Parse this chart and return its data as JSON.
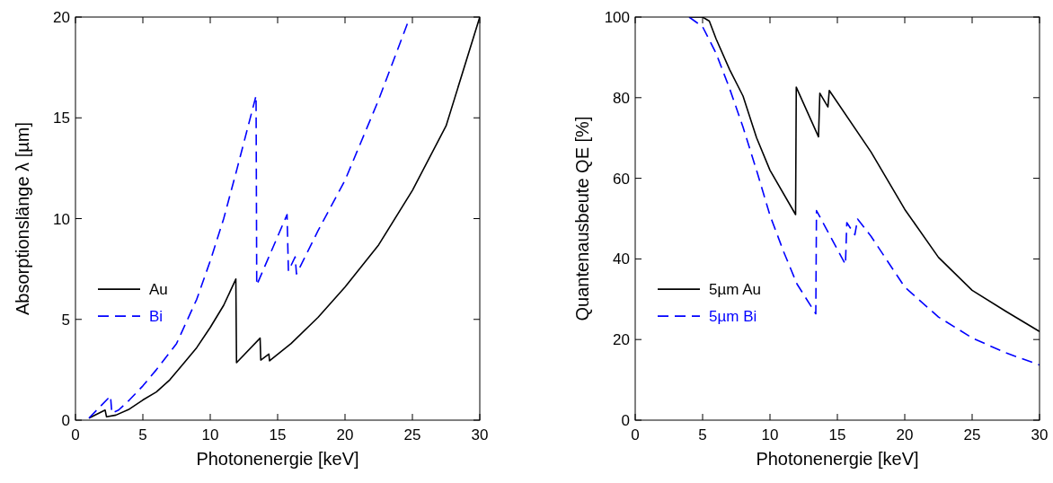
{
  "chart_data": [
    {
      "type": "line",
      "xlabel": "Photonenergie [keV]",
      "ylabel": "Absorptionslänge λ [µm]",
      "xlim": [
        0,
        30
      ],
      "ylim": [
        0,
        20
      ],
      "xticks": [
        0,
        5,
        10,
        15,
        20,
        25,
        30
      ],
      "yticks": [
        0,
        5,
        10,
        15,
        20
      ],
      "legend": "left",
      "grid": false,
      "series": [
        {
          "name": "Au",
          "color": "#000000",
          "line_style": "solid",
          "x": [
            1,
            2.2,
            2.3,
            3,
            4,
            5,
            6,
            7,
            8,
            9,
            10,
            11,
            11.9,
            11.95,
            13.7,
            13.75,
            14.35,
            14.4,
            16,
            18,
            20,
            22.5,
            25,
            27.5,
            30
          ],
          "values": [
            0.1,
            0.5,
            0.17,
            0.25,
            0.55,
            1.0,
            1.4,
            2.0,
            2.8,
            3.6,
            4.6,
            5.7,
            7.0,
            2.85,
            4.07,
            2.98,
            3.28,
            2.94,
            3.8,
            5.1,
            6.6,
            8.7,
            11.4,
            14.6,
            20
          ]
        },
        {
          "name": "Bi",
          "color": "#0000ff",
          "line_style": "dashed",
          "x": [
            1,
            2.6,
            2.7,
            3.2,
            4,
            5,
            6,
            7.5,
            9,
            10,
            11,
            12,
            13.4,
            13.45,
            15.7,
            15.8,
            16.3,
            16.4,
            18,
            20,
            22.5,
            24.7
          ],
          "values": [
            0.1,
            1.2,
            0.35,
            0.5,
            1.0,
            1.7,
            2.5,
            3.8,
            6.0,
            7.9,
            10.0,
            12.5,
            16.1,
            6.7,
            10.2,
            7.4,
            8.1,
            7.25,
            9.4,
            11.9,
            15.9,
            19.8
          ]
        }
      ]
    },
    {
      "type": "line",
      "xlabel": "Photonenergie [keV]",
      "ylabel": "Quantenausbeute QE [%]",
      "xlim": [
        0,
        30
      ],
      "ylim": [
        0,
        100
      ],
      "xticks": [
        0,
        5,
        10,
        15,
        20,
        25,
        30
      ],
      "yticks": [
        0,
        20,
        40,
        60,
        80,
        100
      ],
      "legend": "left",
      "grid": false,
      "series": [
        {
          "name": "5µm Au",
          "color": "#000000",
          "line_style": "solid",
          "x": [
            4,
            5,
            5.5,
            6,
            7,
            8,
            9,
            10,
            11.9,
            11.95,
            13.6,
            13.7,
            14.3,
            14.4,
            17.5,
            20,
            22.5,
            25,
            27.5,
            30
          ],
          "values": [
            100,
            100,
            99,
            94.6,
            87,
            80.4,
            70.1,
            62,
            51.0,
            82.6,
            70.3,
            81.1,
            77.7,
            81.8,
            66.5,
            52.3,
            40.4,
            32.2,
            27,
            22.0
          ]
        },
        {
          "name": "5µm Bi",
          "color": "#0000ff",
          "line_style": "dashed",
          "x": [
            4,
            5,
            6,
            7,
            8,
            9,
            10,
            11,
            12,
            13.4,
            13.45,
            15.6,
            15.7,
            16.3,
            16.5,
            17.5,
            20,
            22.5,
            25,
            27.5,
            30
          ],
          "values": [
            100,
            97.6,
            91,
            82.3,
            72.7,
            62,
            50.8,
            41.9,
            33.8,
            26.4,
            52,
            38.6,
            49.0,
            46.0,
            49.9,
            45.6,
            33,
            25.6,
            20.4,
            16.7,
            13.7
          ]
        }
      ]
    }
  ]
}
